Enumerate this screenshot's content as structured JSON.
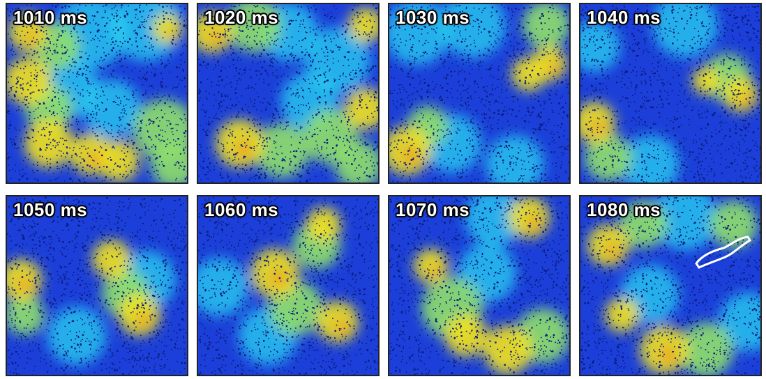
{
  "panels": [
    {
      "id": "p1",
      "label": "1010 ms"
    },
    {
      "id": "p2",
      "label": "1020 ms"
    },
    {
      "id": "p3",
      "label": "1030 ms"
    },
    {
      "id": "p4",
      "label": "1040 ms"
    },
    {
      "id": "p5",
      "label": "1050 ms"
    },
    {
      "id": "p6",
      "label": "1060 ms"
    },
    {
      "id": "p7",
      "label": "1070 ms"
    },
    {
      "id": "p8",
      "label": "1080 ms"
    }
  ],
  "colors": {
    "background": "#1b3fd8",
    "dots": "#0a1a7a",
    "cyan": "#2ad4f0",
    "green": "#8fe06a",
    "yellow": "#f2e21c",
    "orange": "#f08a1e"
  }
}
